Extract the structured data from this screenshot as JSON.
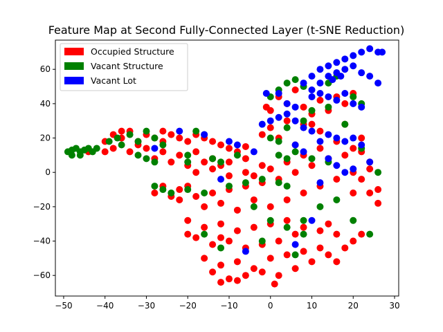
{
  "chart_data": {
    "type": "scatter",
    "title": "Feature Map at Second Fully-Connected Layer (t-SNE Reduction)",
    "xlabel": "",
    "ylabel": "",
    "xlim": [
      -52,
      31
    ],
    "ylim": [
      -72,
      77
    ],
    "xticks": [
      -50,
      -40,
      -30,
      -20,
      -10,
      0,
      10,
      20,
      30
    ],
    "yticks": [
      -60,
      -40,
      -20,
      0,
      20,
      40,
      60
    ],
    "grid": false,
    "legend_position": "top-left",
    "series": [
      {
        "name": "Occupied Structure",
        "color": "#ff0000",
        "points": [
          [
            -40,
            18
          ],
          [
            -38,
            22
          ],
          [
            -36,
            20
          ],
          [
            -34,
            24
          ],
          [
            -32,
            18
          ],
          [
            -30,
            22
          ],
          [
            -28,
            20
          ],
          [
            -26,
            18
          ],
          [
            -24,
            22
          ],
          [
            -22,
            20
          ],
          [
            -20,
            18
          ],
          [
            -18,
            22
          ],
          [
            -16,
            20
          ],
          [
            -14,
            18
          ],
          [
            -12,
            16
          ],
          [
            -10,
            14
          ],
          [
            -8,
            12
          ],
          [
            -6,
            15
          ],
          [
            -38,
            14
          ],
          [
            -34,
            12
          ],
          [
            -30,
            14
          ],
          [
            -26,
            12
          ],
          [
            -22,
            10
          ],
          [
            -18,
            12
          ],
          [
            -14,
            8
          ],
          [
            -10,
            6
          ],
          [
            -6,
            8
          ],
          [
            -28,
            8
          ],
          [
            -24,
            6
          ],
          [
            -20,
            4
          ],
          [
            -16,
            6
          ],
          [
            -12,
            4
          ],
          [
            -28,
            -12
          ],
          [
            -26,
            -8
          ],
          [
            -22,
            -10
          ],
          [
            -18,
            -14
          ],
          [
            -14,
            -12
          ],
          [
            -10,
            -10
          ],
          [
            -6,
            -8
          ],
          [
            -2,
            -6
          ],
          [
            -24,
            -14
          ],
          [
            -20,
            -8
          ],
          [
            -16,
            -20
          ],
          [
            -12,
            -18
          ],
          [
            -8,
            -22
          ],
          [
            -4,
            -16
          ],
          [
            -20,
            -28
          ],
          [
            -16,
            -32
          ],
          [
            -12,
            -30
          ],
          [
            -8,
            -34
          ],
          [
            -4,
            -32
          ],
          [
            0,
            -30
          ],
          [
            4,
            -28
          ],
          [
            -18,
            -38
          ],
          [
            -14,
            -42
          ],
          [
            -10,
            -40
          ],
          [
            -6,
            -44
          ],
          [
            -2,
            -42
          ],
          [
            2,
            -40
          ],
          [
            6,
            -36
          ],
          [
            -16,
            -50
          ],
          [
            -12,
            -54
          ],
          [
            -8,
            -52
          ],
          [
            -4,
            -56
          ],
          [
            0,
            -50
          ],
          [
            4,
            -48
          ],
          [
            8,
            -46
          ],
          [
            -14,
            -58
          ],
          [
            -10,
            -62
          ],
          [
            -6,
            -60
          ],
          [
            -2,
            -58
          ],
          [
            2,
            -60
          ],
          [
            6,
            -56
          ],
          [
            10,
            -52
          ],
          [
            -12,
            -64
          ],
          [
            -8,
            -63
          ],
          [
            1,
            -65
          ],
          [
            12,
            -44
          ],
          [
            14,
            -48
          ],
          [
            16,
            -52
          ],
          [
            18,
            -44
          ],
          [
            20,
            -40
          ],
          [
            22,
            -36
          ],
          [
            16,
            -36
          ],
          [
            12,
            -34
          ],
          [
            8,
            -32
          ],
          [
            14,
            -30
          ],
          [
            0,
            -20
          ],
          [
            4,
            -16
          ],
          [
            8,
            -12
          ],
          [
            12,
            -8
          ],
          [
            16,
            -4
          ],
          [
            20,
            0
          ],
          [
            24,
            2
          ],
          [
            2,
            -4
          ],
          [
            6,
            0
          ],
          [
            10,
            4
          ],
          [
            14,
            8
          ],
          [
            18,
            10
          ],
          [
            22,
            12
          ],
          [
            -2,
            4
          ],
          [
            -6,
            0
          ],
          [
            -10,
            -2
          ],
          [
            -14,
            2
          ],
          [
            -18,
            0
          ],
          [
            -4,
            -2
          ],
          [
            0,
            2
          ],
          [
            4,
            6
          ],
          [
            8,
            10
          ],
          [
            12,
            14
          ],
          [
            16,
            18
          ],
          [
            20,
            14
          ],
          [
            6,
            16
          ],
          [
            2,
            20
          ],
          [
            -2,
            22
          ],
          [
            0,
            26
          ],
          [
            4,
            30
          ],
          [
            8,
            28
          ],
          [
            12,
            24
          ],
          [
            0,
            36
          ],
          [
            4,
            40
          ],
          [
            8,
            38
          ],
          [
            12,
            42
          ],
          [
            16,
            44
          ],
          [
            2,
            44
          ],
          [
            6,
            48
          ],
          [
            10,
            34
          ],
          [
            14,
            36
          ],
          [
            18,
            40
          ],
          [
            20,
            46
          ],
          [
            -1,
            38
          ],
          [
            10,
            28
          ],
          [
            18,
            28
          ],
          [
            22,
            20
          ],
          [
            24,
            6
          ],
          [
            22,
            -4
          ],
          [
            20,
            -12
          ],
          [
            24,
            -12
          ],
          [
            26,
            -18
          ],
          [
            -26,
            24
          ],
          [
            -36,
            24
          ],
          [
            -40,
            12
          ],
          [
            -44,
            12
          ],
          [
            -32,
            16
          ],
          [
            -22,
            -16
          ],
          [
            -12,
            -38
          ],
          [
            -20,
            -36
          ],
          [
            26,
            -10
          ]
        ]
      },
      {
        "name": "Vacant Structure",
        "color": "#008000",
        "points": [
          [
            -49,
            12
          ],
          [
            -48,
            10
          ],
          [
            -47,
            14
          ],
          [
            -46,
            12
          ],
          [
            -45,
            13
          ],
          [
            -44,
            14
          ],
          [
            -43,
            12
          ],
          [
            -42,
            14
          ],
          [
            -48,
            13
          ],
          [
            -46,
            10
          ],
          [
            -39,
            18
          ],
          [
            -37,
            20
          ],
          [
            -36,
            16
          ],
          [
            -34,
            22
          ],
          [
            -32,
            18
          ],
          [
            -30,
            24
          ],
          [
            -28,
            20
          ],
          [
            -26,
            16
          ],
          [
            -32,
            10
          ],
          [
            -30,
            8
          ],
          [
            -28,
            6
          ],
          [
            -20,
            10
          ],
          [
            -20,
            6
          ],
          [
            -14,
            8
          ],
          [
            -12,
            6
          ],
          [
            -8,
            10
          ],
          [
            -28,
            -8
          ],
          [
            -26,
            -10
          ],
          [
            -24,
            -12
          ],
          [
            -20,
            -10
          ],
          [
            -10,
            -8
          ],
          [
            -16,
            -12
          ],
          [
            -6,
            -6
          ],
          [
            -2,
            -4
          ],
          [
            2,
            -6
          ],
          [
            4,
            -8
          ],
          [
            -4,
            -20
          ],
          [
            0,
            -28
          ],
          [
            4,
            -32
          ],
          [
            8,
            -36
          ],
          [
            12,
            -20
          ],
          [
            16,
            -16
          ],
          [
            -16,
            -36
          ],
          [
            -12,
            -44
          ],
          [
            -2,
            -40
          ],
          [
            6,
            -48
          ],
          [
            8,
            -28
          ],
          [
            20,
            -28
          ],
          [
            24,
            -36
          ],
          [
            4,
            8
          ],
          [
            2,
            10
          ],
          [
            6,
            12
          ],
          [
            10,
            8
          ],
          [
            14,
            6
          ],
          [
            0,
            20
          ],
          [
            2,
            18
          ],
          [
            4,
            26
          ],
          [
            8,
            30
          ],
          [
            10,
            36
          ],
          [
            14,
            38
          ],
          [
            0,
            44
          ],
          [
            2,
            48
          ],
          [
            4,
            52
          ],
          [
            6,
            54
          ],
          [
            8,
            50
          ],
          [
            14,
            52
          ],
          [
            16,
            56
          ],
          [
            20,
            44
          ],
          [
            22,
            40
          ],
          [
            18,
            28
          ],
          [
            22,
            14
          ],
          [
            26,
            0
          ],
          [
            -18,
            24
          ],
          [
            -16,
            22
          ]
        ]
      },
      {
        "name": "Vacant Lot",
        "color": "#0000ff",
        "points": [
          [
            10,
            56
          ],
          [
            12,
            60
          ],
          [
            14,
            62
          ],
          [
            16,
            64
          ],
          [
            18,
            66
          ],
          [
            20,
            68
          ],
          [
            22,
            70
          ],
          [
            24,
            72
          ],
          [
            26,
            70
          ],
          [
            27,
            70
          ],
          [
            14,
            56
          ],
          [
            16,
            58
          ],
          [
            18,
            60
          ],
          [
            20,
            62
          ],
          [
            22,
            58
          ],
          [
            24,
            56
          ],
          [
            26,
            52
          ],
          [
            12,
            52
          ],
          [
            15,
            54
          ],
          [
            17,
            56
          ],
          [
            8,
            52
          ],
          [
            10,
            48
          ],
          [
            12,
            46
          ],
          [
            14,
            44
          ],
          [
            16,
            42
          ],
          [
            18,
            46
          ],
          [
            20,
            40
          ],
          [
            22,
            38
          ],
          [
            10,
            44
          ],
          [
            4,
            40
          ],
          [
            6,
            38
          ],
          [
            2,
            46
          ],
          [
            -1,
            46
          ],
          [
            -2,
            28
          ],
          [
            0,
            30
          ],
          [
            2,
            32
          ],
          [
            4,
            34
          ],
          [
            6,
            30
          ],
          [
            8,
            26
          ],
          [
            10,
            24
          ],
          [
            14,
            22
          ],
          [
            16,
            20
          ],
          [
            18,
            18
          ],
          [
            20,
            20
          ],
          [
            22,
            16
          ],
          [
            12,
            18
          ],
          [
            6,
            16
          ],
          [
            8,
            12
          ],
          [
            14,
            8
          ],
          [
            16,
            4
          ],
          [
            18,
            0
          ],
          [
            20,
            2
          ],
          [
            24,
            6
          ],
          [
            12,
            -6
          ],
          [
            10,
            -28
          ],
          [
            6,
            -42
          ],
          [
            -6,
            -46
          ],
          [
            -8,
            16
          ],
          [
            -4,
            12
          ],
          [
            -10,
            18
          ],
          [
            -16,
            22
          ],
          [
            -22,
            24
          ],
          [
            -28,
            14
          ],
          [
            -12,
            -4
          ]
        ]
      }
    ]
  }
}
